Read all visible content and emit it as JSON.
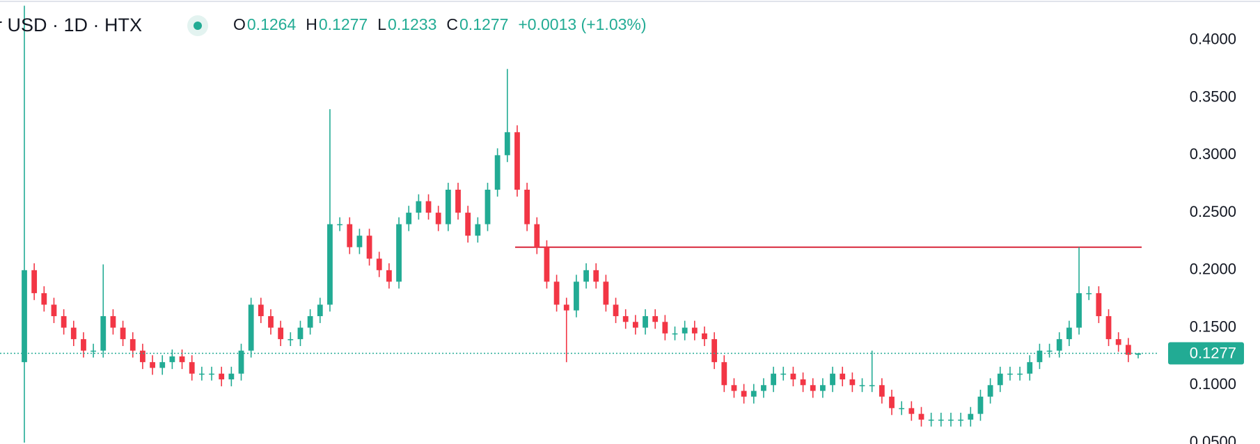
{
  "chart_data": {
    "type": "candlestick",
    "title": "r USD · 1D · HTX",
    "legend": [
      {
        "label": "O",
        "value": 0.1264
      },
      {
        "label": "H",
        "value": 0.1277
      },
      {
        "label": "L",
        "value": 0.1233
      },
      {
        "label": "C",
        "value": 0.1277
      }
    ],
    "change_label": "+0.0013 (+1.03%)",
    "last_price": 0.1277,
    "up_color": "#22ab94",
    "down_color": "#f23645",
    "hline": {
      "value": 0.22,
      "color": "#d8263a"
    },
    "ylim": [
      0.0488,
      0.435
    ],
    "yticks": [
      {
        "value": 0.05,
        "label": "0.0500"
      },
      {
        "value": 0.1,
        "label": "0.1000"
      },
      {
        "value": 0.15,
        "label": "0.1500"
      },
      {
        "value": 0.2,
        "label": "0.2000"
      },
      {
        "value": 0.25,
        "label": "0.2500"
      },
      {
        "value": 0.3,
        "label": "0.3000"
      },
      {
        "value": 0.35,
        "label": "0.3500"
      },
      {
        "value": 0.4,
        "label": "0.4000"
      }
    ],
    "open": [
      0.12,
      0.2,
      0.18,
      0.17,
      0.16,
      0.15,
      0.14,
      0.13,
      0.13,
      0.16,
      0.15,
      0.14,
      0.13,
      0.12,
      0.115,
      0.12,
      0.125,
      0.12,
      0.11,
      0.11,
      0.11,
      0.105,
      0.11,
      0.13,
      0.17,
      0.16,
      0.15,
      0.14,
      0.14,
      0.15,
      0.16,
      0.17,
      0.24,
      0.24,
      0.22,
      0.23,
      0.21,
      0.2,
      0.19,
      0.24,
      0.25,
      0.26,
      0.25,
      0.24,
      0.27,
      0.25,
      0.23,
      0.24,
      0.27,
      0.3,
      0.32,
      0.27,
      0.24,
      0.22,
      0.19,
      0.17,
      0.165,
      0.19,
      0.2,
      0.19,
      0.17,
      0.16,
      0.155,
      0.15,
      0.16,
      0.155,
      0.145,
      0.145,
      0.15,
      0.145,
      0.14,
      0.12,
      0.1,
      0.095,
      0.09,
      0.095,
      0.1,
      0.11,
      0.11,
      0.105,
      0.1,
      0.095,
      0.1,
      0.11,
      0.105,
      0.1,
      0.1,
      0.1,
      0.09,
      0.08,
      0.08,
      0.075,
      0.07,
      0.07,
      0.07,
      0.07,
      0.07,
      0.075,
      0.09,
      0.1,
      0.11,
      0.11,
      0.11,
      0.12,
      0.13,
      0.13,
      0.14,
      0.15,
      0.18,
      0.18,
      0.16,
      0.14,
      0.135,
      0.1264
    ],
    "high": [
      0.43,
      0.206,
      0.186,
      0.176,
      0.166,
      0.156,
      0.146,
      0.136,
      0.205,
      0.166,
      0.156,
      0.146,
      0.136,
      0.126,
      0.126,
      0.131,
      0.131,
      0.126,
      0.116,
      0.116,
      0.116,
      0.116,
      0.136,
      0.176,
      0.176,
      0.166,
      0.156,
      0.146,
      0.156,
      0.166,
      0.176,
      0.34,
      0.246,
      0.246,
      0.236,
      0.236,
      0.216,
      0.206,
      0.246,
      0.256,
      0.266,
      0.266,
      0.256,
      0.276,
      0.276,
      0.256,
      0.246,
      0.276,
      0.306,
      0.375,
      0.326,
      0.276,
      0.246,
      0.226,
      0.196,
      0.176,
      0.196,
      0.206,
      0.206,
      0.196,
      0.176,
      0.166,
      0.161,
      0.166,
      0.166,
      0.161,
      0.151,
      0.156,
      0.156,
      0.151,
      0.146,
      0.126,
      0.106,
      0.101,
      0.101,
      0.106,
      0.116,
      0.116,
      0.116,
      0.111,
      0.106,
      0.106,
      0.116,
      0.116,
      0.111,
      0.106,
      0.13,
      0.106,
      0.096,
      0.086,
      0.086,
      0.081,
      0.076,
      0.076,
      0.076,
      0.076,
      0.081,
      0.096,
      0.106,
      0.116,
      0.116,
      0.116,
      0.126,
      0.136,
      0.136,
      0.146,
      0.156,
      0.22,
      0.186,
      0.186,
      0.166,
      0.146,
      0.141,
      0.1277
    ],
    "low": [
      0.05,
      0.174,
      0.164,
      0.154,
      0.144,
      0.134,
      0.124,
      0.124,
      0.124,
      0.144,
      0.134,
      0.124,
      0.114,
      0.109,
      0.109,
      0.114,
      0.114,
      0.104,
      0.104,
      0.104,
      0.099,
      0.099,
      0.104,
      0.124,
      0.154,
      0.144,
      0.134,
      0.134,
      0.134,
      0.144,
      0.154,
      0.164,
      0.234,
      0.214,
      0.214,
      0.204,
      0.194,
      0.184,
      0.184,
      0.234,
      0.244,
      0.244,
      0.234,
      0.234,
      0.244,
      0.224,
      0.224,
      0.234,
      0.264,
      0.294,
      0.264,
      0.234,
      0.214,
      0.184,
      0.164,
      0.12,
      0.159,
      0.184,
      0.184,
      0.164,
      0.154,
      0.149,
      0.144,
      0.144,
      0.149,
      0.139,
      0.139,
      0.139,
      0.139,
      0.134,
      0.114,
      0.094,
      0.089,
      0.084,
      0.084,
      0.089,
      0.094,
      0.104,
      0.099,
      0.094,
      0.089,
      0.089,
      0.094,
      0.099,
      0.094,
      0.094,
      0.094,
      0.084,
      0.074,
      0.074,
      0.069,
      0.064,
      0.064,
      0.064,
      0.064,
      0.064,
      0.064,
      0.069,
      0.084,
      0.094,
      0.104,
      0.104,
      0.104,
      0.114,
      0.124,
      0.124,
      0.134,
      0.144,
      0.174,
      0.154,
      0.134,
      0.129,
      0.12,
      0.1233
    ],
    "close": [
      0.2,
      0.18,
      0.17,
      0.16,
      0.15,
      0.14,
      0.13,
      0.13,
      0.16,
      0.15,
      0.14,
      0.13,
      0.12,
      0.115,
      0.12,
      0.125,
      0.12,
      0.11,
      0.11,
      0.11,
      0.105,
      0.11,
      0.13,
      0.17,
      0.16,
      0.15,
      0.14,
      0.14,
      0.15,
      0.16,
      0.17,
      0.24,
      0.24,
      0.22,
      0.23,
      0.21,
      0.2,
      0.19,
      0.24,
      0.25,
      0.26,
      0.25,
      0.24,
      0.27,
      0.25,
      0.23,
      0.24,
      0.27,
      0.3,
      0.32,
      0.27,
      0.24,
      0.22,
      0.19,
      0.17,
      0.165,
      0.19,
      0.2,
      0.19,
      0.17,
      0.16,
      0.155,
      0.15,
      0.16,
      0.155,
      0.145,
      0.145,
      0.15,
      0.145,
      0.14,
      0.12,
      0.1,
      0.095,
      0.09,
      0.095,
      0.1,
      0.11,
      0.11,
      0.105,
      0.1,
      0.095,
      0.1,
      0.11,
      0.105,
      0.1,
      0.1,
      0.1,
      0.09,
      0.08,
      0.08,
      0.075,
      0.07,
      0.07,
      0.07,
      0.07,
      0.07,
      0.075,
      0.09,
      0.1,
      0.11,
      0.11,
      0.11,
      0.12,
      0.13,
      0.13,
      0.14,
      0.15,
      0.18,
      0.18,
      0.16,
      0.14,
      0.135,
      0.1264,
      0.1277
    ]
  }
}
